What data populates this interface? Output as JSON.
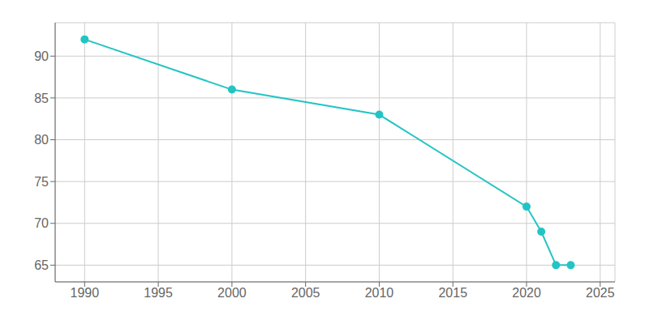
{
  "chart_data": {
    "type": "line",
    "x": [
      1990,
      2000,
      2010,
      2020,
      2021,
      2022,
      2023
    ],
    "values": [
      92,
      86,
      83,
      72,
      69,
      65,
      65
    ],
    "color": "#22C4C4",
    "marker": "circle",
    "xlim": [
      1988,
      2026
    ],
    "ylim": [
      63,
      94
    ],
    "xticks": [
      1990,
      1995,
      2000,
      2005,
      2010,
      2015,
      2020,
      2025
    ],
    "yticks": [
      65,
      70,
      75,
      80,
      85,
      90
    ],
    "grid": true
  }
}
